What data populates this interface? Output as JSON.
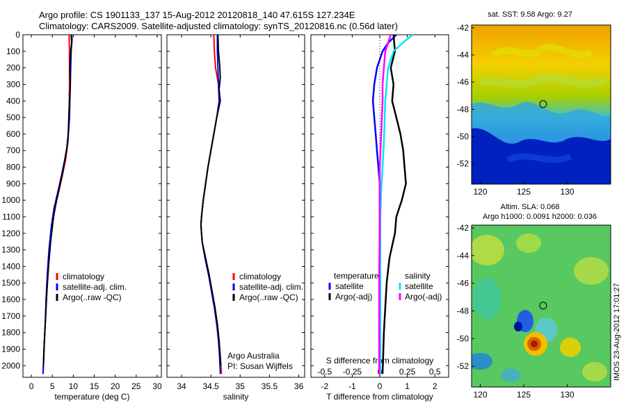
{
  "header": {
    "line1": "Argo profile: CS 1901133_137 15-Aug-2012 20120818_140 47.615S 127.234E",
    "line2": "Climatology: CARS2009. Satellite-adjusted climatology: synTS_20120816.nc (0.56d later)"
  },
  "colors": {
    "climatology": "#ff0000",
    "satellite": "#0000ff",
    "argo": "#000000",
    "salinity_satellite": "#00e5ff",
    "salinity_argo": "#ff00ff"
  },
  "chart_data": [
    {
      "type": "line",
      "panel": "temperature",
      "xlabel": "temperature (deg C)",
      "xlim": [
        -2,
        31
      ],
      "xticks": [
        0,
        5,
        10,
        15,
        20,
        25,
        30
      ],
      "ylim": [
        2070,
        0
      ],
      "yticks": [
        0,
        100,
        200,
        300,
        400,
        500,
        600,
        700,
        800,
        900,
        1000,
        1100,
        1200,
        1300,
        1400,
        1500,
        1600,
        1700,
        1800,
        1900,
        2000
      ],
      "legend": [
        "climatology",
        "satellite-adj. clim.",
        "Argo(..raw -QC)"
      ],
      "legend_position": "lower-right",
      "series": [
        {
          "name": "climatology",
          "color": "#ff0000",
          "points": [
            [
              9.0,
              0
            ],
            [
              9.1,
              100
            ],
            [
              9.1,
              300
            ],
            [
              9.0,
              500
            ],
            [
              8.7,
              650
            ],
            [
              8.2,
              750
            ],
            [
              7.4,
              850
            ],
            [
              6.5,
              950
            ],
            [
              5.6,
              1050
            ],
            [
              4.9,
              1150
            ],
            [
              4.3,
              1300
            ],
            [
              3.9,
              1450
            ],
            [
              3.6,
              1600
            ],
            [
              3.3,
              1750
            ],
            [
              3.0,
              1900
            ],
            [
              2.8,
              2050
            ]
          ]
        },
        {
          "name": "satellite-adj. clim.",
          "color": "#0000ff",
          "points": [
            [
              9.6,
              0
            ],
            [
              9.7,
              30
            ],
            [
              9.5,
              100
            ],
            [
              9.3,
              300
            ],
            [
              9.1,
              500
            ],
            [
              8.7,
              650
            ],
            [
              8.0,
              750
            ],
            [
              7.2,
              850
            ],
            [
              6.3,
              950
            ],
            [
              5.4,
              1050
            ],
            [
              4.8,
              1150
            ],
            [
              4.2,
              1300
            ],
            [
              3.8,
              1450
            ],
            [
              3.5,
              1600
            ],
            [
              3.3,
              1750
            ],
            [
              3.0,
              1900
            ],
            [
              2.8,
              2050
            ]
          ]
        },
        {
          "name": "Argo(..raw -QC)",
          "color": "#000000",
          "points": [
            [
              9.5,
              0
            ],
            [
              9.6,
              50
            ],
            [
              9.4,
              100
            ],
            [
              9.2,
              200
            ],
            [
              9.3,
              300
            ],
            [
              9.0,
              450
            ],
            [
              8.8,
              600
            ],
            [
              8.4,
              700
            ],
            [
              7.7,
              800
            ],
            [
              6.9,
              900
            ],
            [
              6.0,
              1000
            ],
            [
              5.3,
              1100
            ],
            [
              4.6,
              1250
            ],
            [
              4.1,
              1400
            ],
            [
              3.7,
              1550
            ],
            [
              3.4,
              1700
            ],
            [
              3.1,
              1850
            ],
            [
              2.9,
              2000
            ]
          ]
        }
      ]
    },
    {
      "type": "line",
      "panel": "salinity",
      "xlabel": "salinity",
      "xlim": [
        33.75,
        36.1
      ],
      "xticks": [
        34,
        34.5,
        35,
        35.5,
        36
      ],
      "ylim": [
        2070,
        0
      ],
      "legend": [
        "climatology",
        "satellite-adj. clim.",
        "Argo(..raw -QC)"
      ],
      "legend_position": "lower-right",
      "annotations": [
        "Argo Australia",
        "PI: Susan Wijffels"
      ],
      "series": [
        {
          "name": "climatology",
          "color": "#ff0000",
          "points": [
            [
              34.55,
              0
            ],
            [
              34.56,
              100
            ],
            [
              34.58,
              200
            ],
            [
              34.63,
              300
            ],
            [
              34.65,
              400
            ],
            [
              34.6,
              500
            ],
            [
              34.55,
              600
            ],
            [
              34.5,
              700
            ],
            [
              34.45,
              800
            ],
            [
              34.41,
              900
            ],
            [
              34.37,
              1000
            ],
            [
              34.34,
              1100
            ],
            [
              34.33,
              1150
            ],
            [
              34.35,
              1250
            ],
            [
              34.4,
              1350
            ],
            [
              34.46,
              1450
            ],
            [
              34.52,
              1550
            ],
            [
              34.57,
              1650
            ],
            [
              34.61,
              1750
            ],
            [
              34.64,
              1850
            ],
            [
              34.66,
              1950
            ],
            [
              34.68,
              2050
            ]
          ]
        },
        {
          "name": "satellite-adj. clim.",
          "color": "#0000ff",
          "points": [
            [
              34.61,
              0
            ],
            [
              34.61,
              100
            ],
            [
              34.62,
              200
            ],
            [
              34.63,
              300
            ],
            [
              34.64,
              400
            ],
            [
              34.6,
              500
            ],
            [
              34.55,
              600
            ],
            [
              34.5,
              700
            ],
            [
              34.45,
              800
            ],
            [
              34.41,
              900
            ],
            [
              34.37,
              1000
            ],
            [
              34.34,
              1100
            ],
            [
              34.33,
              1150
            ],
            [
              34.35,
              1250
            ],
            [
              34.4,
              1350
            ],
            [
              34.46,
              1450
            ],
            [
              34.51,
              1550
            ],
            [
              34.56,
              1650
            ],
            [
              34.6,
              1750
            ],
            [
              34.63,
              1850
            ],
            [
              34.65,
              1950
            ],
            [
              34.66,
              2050
            ]
          ]
        },
        {
          "name": "Argo(..raw -QC)",
          "color": "#000000",
          "points": [
            [
              34.62,
              0
            ],
            [
              34.63,
              100
            ],
            [
              34.65,
              180
            ],
            [
              34.66,
              260
            ],
            [
              34.64,
              330
            ],
            [
              34.66,
              400
            ],
            [
              34.6,
              500
            ],
            [
              34.55,
              600
            ],
            [
              34.5,
              700
            ],
            [
              34.45,
              800
            ],
            [
              34.41,
              900
            ],
            [
              34.37,
              1000
            ],
            [
              34.34,
              1100
            ],
            [
              34.33,
              1150
            ],
            [
              34.35,
              1250
            ],
            [
              34.41,
              1350
            ],
            [
              34.47,
              1450
            ],
            [
              34.52,
              1550
            ],
            [
              34.57,
              1650
            ],
            [
              34.61,
              1750
            ],
            [
              34.64,
              1850
            ],
            [
              34.66,
              1950
            ],
            [
              34.67,
              2000
            ]
          ]
        }
      ]
    },
    {
      "type": "line",
      "panel": "difference",
      "xlabel": "T difference from climatology",
      "xlabel_top": "S difference from climatology",
      "xlim": [
        -2.5,
        2.5
      ],
      "xticks": [
        -2,
        -1,
        0,
        1,
        2
      ],
      "xticks_salinity": [
        "-0.5",
        "-0.25",
        "0",
        "0.25",
        "0.5"
      ],
      "ylim": [
        2070,
        0
      ],
      "legend_titles": [
        "temperature",
        "salinity"
      ],
      "legend_temperature": [
        "satellite",
        "Argo(-adj)"
      ],
      "legend_salinity": [
        "satellite",
        "Argo(-adj)"
      ],
      "series": [
        {
          "name": "temperature satellite",
          "color": "#0000ff",
          "points": [
            [
              0.6,
              0
            ],
            [
              0.3,
              50
            ],
            [
              0.1,
              100
            ],
            [
              -0.1,
              200
            ],
            [
              -0.2,
              300
            ],
            [
              -0.25,
              400
            ],
            [
              -0.2,
              500
            ],
            [
              -0.15,
              600
            ],
            [
              -0.1,
              700
            ],
            [
              -0.05,
              800
            ],
            [
              0,
              900
            ],
            [
              0,
              1100
            ],
            [
              0,
              1300
            ],
            [
              -0.02,
              1500
            ],
            [
              -0.02,
              1700
            ],
            [
              -0.02,
              1900
            ],
            [
              -0.02,
              2050
            ]
          ]
        },
        {
          "name": "temperature Argo(-adj)",
          "color": "#000000",
          "points": [
            [
              0.5,
              0
            ],
            [
              0.55,
              100
            ],
            [
              0.4,
              200
            ],
            [
              0.5,
              300
            ],
            [
              0.45,
              400
            ],
            [
              0.6,
              500
            ],
            [
              0.75,
              600
            ],
            [
              0.85,
              700
            ],
            [
              0.9,
              800
            ],
            [
              0.95,
              900
            ],
            [
              0.8,
              1000
            ],
            [
              0.6,
              1100
            ],
            [
              0.55,
              1200
            ],
            [
              0.35,
              1350
            ],
            [
              0.25,
              1500
            ],
            [
              0.2,
              1650
            ],
            [
              0.15,
              1800
            ],
            [
              0.12,
              1950
            ],
            [
              0.1,
              2050
            ]
          ]
        },
        {
          "name": "salinity satellite",
          "color": "#00e5ff",
          "points": [
            [
              1.2,
              0
            ],
            [
              0.9,
              40
            ],
            [
              0.5,
              100
            ],
            [
              0.3,
              200
            ],
            [
              0.25,
              300
            ],
            [
              0.2,
              400
            ],
            [
              0.18,
              500
            ],
            [
              0.15,
              650
            ],
            [
              0.1,
              800
            ],
            [
              0.05,
              950
            ],
            [
              0.02,
              1100
            ],
            [
              0.02,
              1300
            ],
            [
              0.02,
              1500
            ],
            [
              0.02,
              1700
            ],
            [
              0.02,
              1900
            ],
            [
              0.02,
              2050
            ]
          ]
        },
        {
          "name": "salinity Argo(-adj)",
          "color": "#ff00ff",
          "points": [
            [
              0.4,
              0
            ],
            [
              0.2,
              100
            ],
            [
              0.15,
              200
            ],
            [
              0.1,
              300
            ],
            [
              0.1,
              400
            ],
            [
              0.05,
              600
            ],
            [
              0,
              800
            ],
            [
              0,
              1000
            ],
            [
              0,
              1200
            ],
            [
              -0.02,
              1400
            ],
            [
              -0.02,
              1600
            ],
            [
              -0.02,
              1800
            ],
            [
              -0.02,
              2050
            ]
          ]
        }
      ]
    },
    {
      "type": "heatmap",
      "panel": "sst-map",
      "title": "sat. SST: 9.58 Argo: 9.27",
      "xlim": [
        119,
        135
      ],
      "ylim": [
        -53.5,
        -41.8
      ],
      "xticks": [
        120,
        125,
        130
      ],
      "yticks": [
        -42,
        -44,
        -46,
        -48,
        -50,
        -52
      ],
      "marker": {
        "lon": 127.234,
        "lat": -47.615
      }
    },
    {
      "type": "heatmap",
      "panel": "sla-map",
      "title": "Altim. SLA: 0.068",
      "subtitle": "Argo h1000: 0.0091 h2000: 0.036",
      "xlim": [
        119,
        135
      ],
      "ylim": [
        -53.5,
        -41.8
      ],
      "xticks": [
        120,
        125,
        130
      ],
      "yticks": [
        -42,
        -44,
        -46,
        -48,
        -50,
        -52
      ],
      "marker": {
        "lon": 127.234,
        "lat": -47.615
      }
    }
  ],
  "footer": {
    "stamp": "IMOS 23-Aug-2012 17:01:27"
  }
}
